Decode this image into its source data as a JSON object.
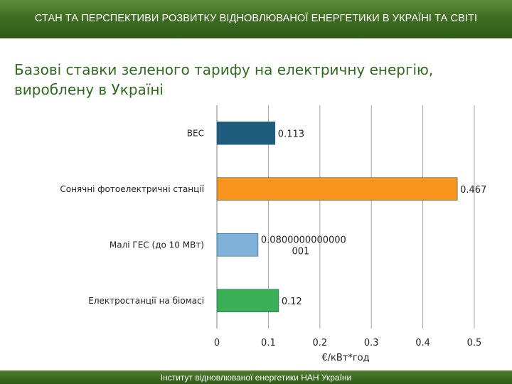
{
  "header": {
    "title": "СТАН ТА ПЕРСПЕКТИВИ РОЗВИТКУ ВІДНОВЛЮВАНОЇ ЕНЕРГЕТИКИ В УКРАЇНІ ТА СВІТІ"
  },
  "slide": {
    "title_line1": "Базові ставки зеленого тарифу на електричну енергію,",
    "title_line2": "вироблену в Україні"
  },
  "footer": {
    "text": "Інститут відновлюваної енергетики НАН України"
  },
  "chart_data": {
    "type": "bar",
    "orientation": "horizontal",
    "title": "",
    "xlabel": "€/кВт*год",
    "ylabel": "",
    "xlim": [
      0,
      0.5
    ],
    "xticks": [
      0,
      0.1,
      0.2,
      0.3,
      0.4,
      0.5
    ],
    "xtick_labels": [
      "0",
      "0.1",
      "0.2",
      "0.3",
      "0.4",
      "0.5"
    ],
    "grid": true,
    "legend": "none",
    "categories": [
      "ВЕС",
      "Сонячні фотоелектричні станції",
      "Малі ГЕС (до 10 МВт)",
      "Електростанції на біомасі"
    ],
    "values": [
      0.113,
      0.467,
      0.08,
      0.12
    ],
    "value_labels": [
      [
        "0.113"
      ],
      [
        "0.467"
      ],
      [
        "0.0800000000000",
        "001"
      ],
      [
        "0.12"
      ]
    ],
    "colors": [
      "#1f5d7e",
      "#f7941d",
      "#7fb1d8",
      "#3aaf55"
    ]
  }
}
